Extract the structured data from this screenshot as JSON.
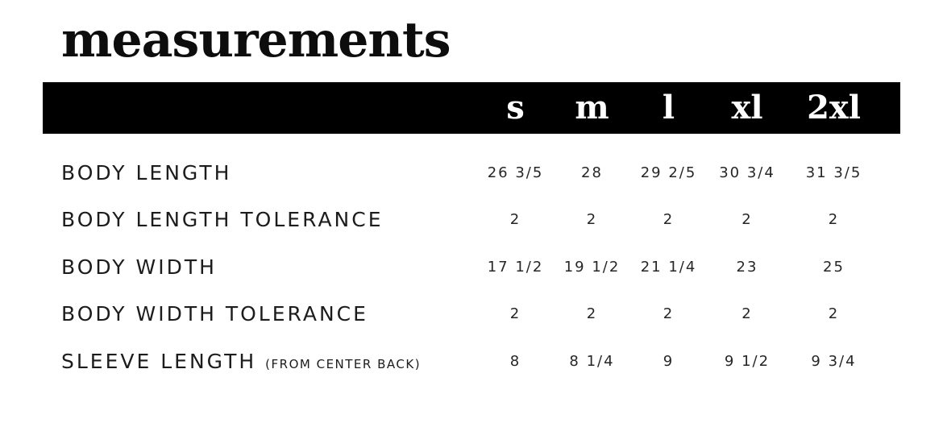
{
  "page": {
    "background": "#ffffff",
    "header_bar_color": "#000000",
    "header_text_color": "#ffffff",
    "text_color": "#1a1a1a"
  },
  "chart_data": {
    "type": "table",
    "title": "measurements",
    "columns": [
      "",
      "s",
      "m",
      "l",
      "xl",
      "2xl"
    ],
    "rows": [
      {
        "label": "BODY LENGTH",
        "note": "",
        "values": [
          "26 3/5",
          "28",
          "29 2/5",
          "30 3/4",
          "31 3/5"
        ]
      },
      {
        "label": "BODY LENGTH TOLERANCE",
        "note": "",
        "values": [
          "2",
          "2",
          "2",
          "2",
          "2"
        ]
      },
      {
        "label": "BODY WIDTH",
        "note": "",
        "values": [
          "17 1/2",
          "19 1/2",
          "21 1/4",
          "23",
          "25"
        ]
      },
      {
        "label": "BODY WIDTH TOLERANCE",
        "note": "",
        "values": [
          "2",
          "2",
          "2",
          "2",
          "2"
        ]
      },
      {
        "label": "SLEEVE LENGTH",
        "note": "(FROM CENTER BACK)",
        "values": [
          "8",
          "8 1/4",
          "9",
          "9 1/2",
          "9 3/4"
        ]
      }
    ]
  }
}
